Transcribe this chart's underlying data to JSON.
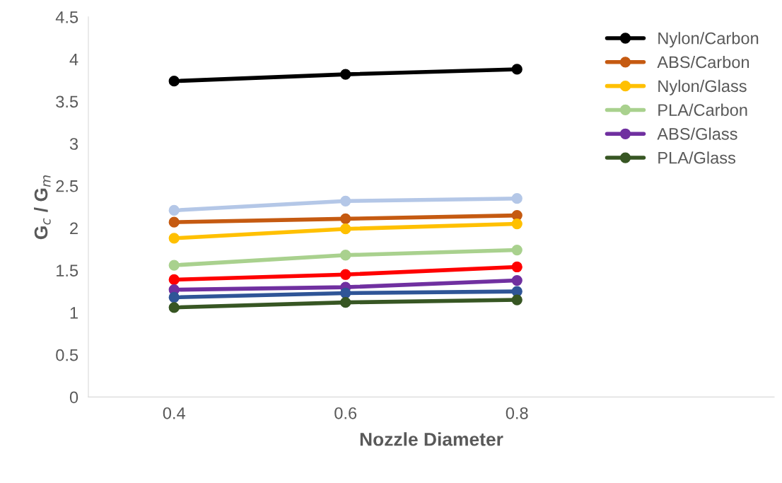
{
  "chart_data": {
    "type": "line",
    "xlabel": "Nozzle Diameter",
    "ylabel": "G$_{c}$ / G$_{m}$",
    "categories": [
      "0.4",
      "0.6",
      "0.8"
    ],
    "ylim": [
      0,
      4.5
    ],
    "yticks": [
      0,
      0.5,
      1,
      1.5,
      2,
      2.5,
      3,
      3.5,
      4,
      4.5
    ],
    "grid": false,
    "legend": "top right",
    "marker": "circle",
    "line_style": "solid",
    "series": [
      {
        "name": "Nylon/Carbon",
        "color": "#000000",
        "values": [
          3.74,
          3.82,
          3.88
        ]
      },
      {
        "color": "#b4c7e7",
        "values": [
          2.21,
          2.32,
          2.35
        ]
      },
      {
        "name": "ABS/Carbon",
        "color": "#c55a11",
        "values": [
          2.07,
          2.11,
          2.15
        ]
      },
      {
        "name": "Nylon/Glass",
        "color": "#ffc000",
        "values": [
          1.88,
          1.99,
          2.05
        ]
      },
      {
        "name": "PLA/Carbon",
        "color": "#a9d18e",
        "values": [
          1.56,
          1.68,
          1.74
        ]
      },
      {
        "color": "#ff0000",
        "values": [
          1.39,
          1.45,
          1.54
        ]
      },
      {
        "name": "ABS/Glass",
        "color": "#7030a0",
        "values": [
          1.27,
          1.3,
          1.38
        ]
      },
      {
        "color": "#2f5597",
        "values": [
          1.18,
          1.23,
          1.25
        ]
      },
      {
        "name": "PLA/Glass",
        "color": "#375623",
        "values": [
          1.06,
          1.12,
          1.15
        ]
      }
    ]
  }
}
